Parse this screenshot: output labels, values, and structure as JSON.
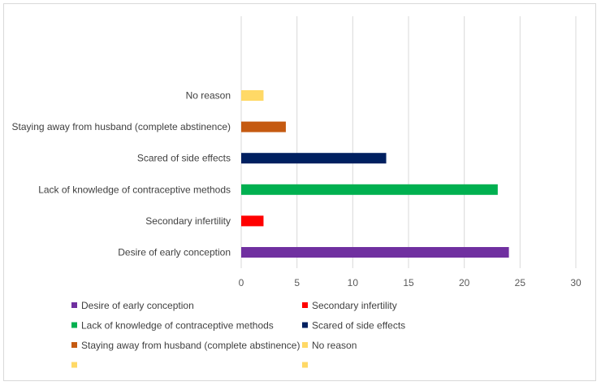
{
  "chart_data": {
    "type": "bar",
    "orientation": "horizontal",
    "title": "",
    "xlabel": "",
    "ylabel": "",
    "xlim": [
      0,
      30
    ],
    "x_ticks": [
      0,
      5,
      10,
      15,
      20,
      25,
      30
    ],
    "grid": "vertical",
    "legend_position": "bottom",
    "categories": [
      "Desire of early conception",
      "Secondary infertility",
      "Lack of knowledge of contraceptive methods",
      "Scared of side effects",
      "Staying away from husband (complete abstinence)",
      "No reason"
    ],
    "values": [
      24,
      2,
      23,
      13,
      4,
      2
    ],
    "colors": [
      "#7030a0",
      "#ff0000",
      "#00b050",
      "#002060",
      "#c55a11",
      "#ffd966"
    ],
    "legend": [
      {
        "label": "Desire of early conception",
        "color": "#7030a0"
      },
      {
        "label": "Secondary infertility",
        "color": "#ff0000"
      },
      {
        "label": "Lack of knowledge of contraceptive methods",
        "color": "#00b050"
      },
      {
        "label": "Scared of side effects",
        "color": "#002060"
      },
      {
        "label": "Staying away from husband (complete abstinence)",
        "color": "#c55a11"
      },
      {
        "label": "No reason",
        "color": "#ffd966"
      },
      {
        "label": "",
        "color": "#ffd966"
      },
      {
        "label": "",
        "color": "#ffd966"
      }
    ]
  }
}
